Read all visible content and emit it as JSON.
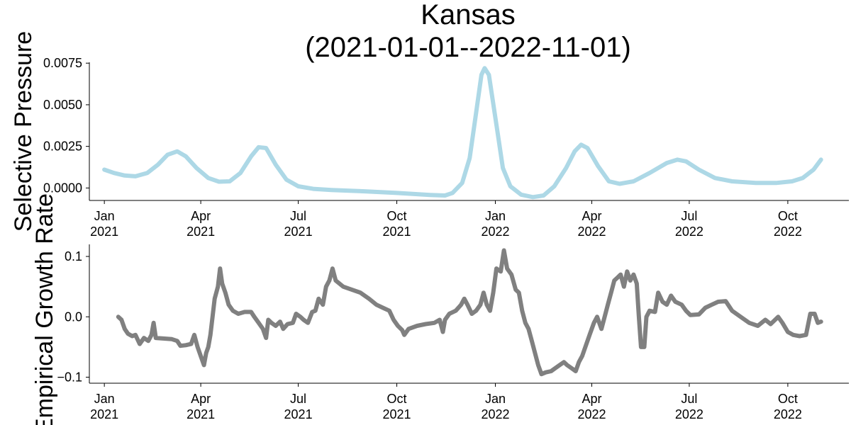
{
  "title_line1": "Kansas",
  "title_line2": "(2021-01-01--2022-11-01)",
  "chart_data": [
    {
      "type": "line",
      "name": "selective-pressure",
      "ylabel": "Selective Pressure",
      "color": "#add8e6",
      "xlim": [
        "2020-12-18",
        "2022-11-27"
      ],
      "ylim": [
        -0.00075,
        0.00755
      ],
      "yticks": [
        0,
        0.0025,
        0.005,
        0.0075
      ],
      "ytick_labels": [
        "0.0000",
        "0.0025",
        "0.0050",
        "0.0075"
      ],
      "xticks": [
        "2021-01-01",
        "2021-04-01",
        "2021-07-01",
        "2021-10-01",
        "2022-01-01",
        "2022-04-01",
        "2022-07-01",
        "2022-10-01"
      ],
      "xtick_labels": [
        [
          "Jan",
          "2021"
        ],
        [
          "Apr",
          "2021"
        ],
        [
          "Jul",
          "2021"
        ],
        [
          "Oct",
          "2021"
        ],
        [
          "Jan",
          "2022"
        ],
        [
          "Apr",
          "2022"
        ],
        [
          "Jul",
          "2022"
        ],
        [
          "Oct",
          "2022"
        ]
      ],
      "points": [
        [
          "2021-01-01",
          0.0011
        ],
        [
          "2021-01-10",
          0.0009
        ],
        [
          "2021-01-20",
          0.00075
        ],
        [
          "2021-01-30",
          0.0007
        ],
        [
          "2021-02-10",
          0.0009
        ],
        [
          "2021-02-20",
          0.0014
        ],
        [
          "2021-03-01",
          0.002
        ],
        [
          "2021-03-10",
          0.0022
        ],
        [
          "2021-03-18",
          0.0019
        ],
        [
          "2021-03-28",
          0.0012
        ],
        [
          "2021-04-08",
          0.0006
        ],
        [
          "2021-04-18",
          0.00038
        ],
        [
          "2021-04-28",
          0.0004
        ],
        [
          "2021-05-08",
          0.0009
        ],
        [
          "2021-05-18",
          0.0019
        ],
        [
          "2021-05-25",
          0.00245
        ],
        [
          "2021-06-01",
          0.0024
        ],
        [
          "2021-06-10",
          0.0014
        ],
        [
          "2021-06-20",
          0.0005
        ],
        [
          "2021-07-01",
          0.0001
        ],
        [
          "2021-07-15",
          -5e-05
        ],
        [
          "2021-08-01",
          -0.00012
        ],
        [
          "2021-09-01",
          -0.0002
        ],
        [
          "2021-10-01",
          -0.0003
        ],
        [
          "2021-11-01",
          -0.00042
        ],
        [
          "2021-11-15",
          -0.00045
        ],
        [
          "2021-11-22",
          -0.0003
        ],
        [
          "2021-12-01",
          0.0003
        ],
        [
          "2021-12-08",
          0.0018
        ],
        [
          "2021-12-14",
          0.0045
        ],
        [
          "2021-12-19",
          0.0068
        ],
        [
          "2021-12-22",
          0.0072
        ],
        [
          "2021-12-26",
          0.0068
        ],
        [
          "2022-01-02",
          0.0038
        ],
        [
          "2022-01-08",
          0.0012
        ],
        [
          "2022-01-15",
          0.0001
        ],
        [
          "2022-01-25",
          -0.0004
        ],
        [
          "2022-02-05",
          -0.00055
        ],
        [
          "2022-02-15",
          -0.00045
        ],
        [
          "2022-02-25",
          0.0001
        ],
        [
          "2022-03-08",
          0.0012
        ],
        [
          "2022-03-16",
          0.0022
        ],
        [
          "2022-03-22",
          0.0026
        ],
        [
          "2022-03-28",
          0.0024
        ],
        [
          "2022-04-07",
          0.0013
        ],
        [
          "2022-04-17",
          0.0004
        ],
        [
          "2022-04-27",
          0.00025
        ],
        [
          "2022-05-10",
          0.0004
        ],
        [
          "2022-05-25",
          0.0009
        ],
        [
          "2022-06-10",
          0.0015
        ],
        [
          "2022-06-20",
          0.0017
        ],
        [
          "2022-06-28",
          0.0016
        ],
        [
          "2022-07-10",
          0.0011
        ],
        [
          "2022-07-25",
          0.0006
        ],
        [
          "2022-08-10",
          0.0004
        ],
        [
          "2022-09-01",
          0.0003
        ],
        [
          "2022-09-20",
          0.0003
        ],
        [
          "2022-10-05",
          0.0004
        ],
        [
          "2022-10-15",
          0.0006
        ],
        [
          "2022-10-25",
          0.0011
        ],
        [
          "2022-11-01",
          0.0017
        ]
      ]
    },
    {
      "type": "line",
      "name": "empirical-growth-rate",
      "ylabel": "Empirical Growth Rate",
      "color": "#808080",
      "xlim": [
        "2020-12-18",
        "2022-11-27"
      ],
      "ylim": [
        -0.11,
        0.12
      ],
      "yticks": [
        -0.1,
        0,
        0.1
      ],
      "ytick_labels": [
        "−0.1",
        "0.0",
        "0.1"
      ],
      "xticks": [
        "2021-01-01",
        "2021-04-01",
        "2021-07-01",
        "2021-10-01",
        "2022-01-01",
        "2022-04-01",
        "2022-07-01",
        "2022-10-01"
      ],
      "xtick_labels": [
        [
          "Jan",
          "2021"
        ],
        [
          "Apr",
          "2021"
        ],
        [
          "Jul",
          "2021"
        ],
        [
          "Oct",
          "2021"
        ],
        [
          "Jan",
          "2022"
        ],
        [
          "Apr",
          "2022"
        ],
        [
          "Jul",
          "2022"
        ],
        [
          "Oct",
          "2022"
        ]
      ],
      "points": [
        [
          "2021-01-14",
          0.0
        ],
        [
          "2021-01-17",
          -0.005
        ],
        [
          "2021-01-20",
          -0.02
        ],
        [
          "2021-01-23",
          -0.028
        ],
        [
          "2021-01-27",
          -0.032
        ],
        [
          "2021-01-30",
          -0.03
        ],
        [
          "2021-02-03",
          -0.045
        ],
        [
          "2021-02-07",
          -0.035
        ],
        [
          "2021-02-11",
          -0.04
        ],
        [
          "2021-02-14",
          -0.03
        ],
        [
          "2021-02-16",
          -0.01
        ],
        [
          "2021-02-18",
          -0.035
        ],
        [
          "2021-02-25",
          -0.036
        ],
        [
          "2021-03-05",
          -0.037
        ],
        [
          "2021-03-10",
          -0.04
        ],
        [
          "2021-03-13",
          -0.048
        ],
        [
          "2021-03-18",
          -0.047
        ],
        [
          "2021-03-23",
          -0.045
        ],
        [
          "2021-03-26",
          -0.03
        ],
        [
          "2021-03-29",
          -0.05
        ],
        [
          "2021-04-01",
          -0.065
        ],
        [
          "2021-04-04",
          -0.08
        ],
        [
          "2021-04-06",
          -0.06
        ],
        [
          "2021-04-08",
          -0.05
        ],
        [
          "2021-04-10",
          -0.03
        ],
        [
          "2021-04-12",
          0.0
        ],
        [
          "2021-04-14",
          0.03
        ],
        [
          "2021-04-17",
          0.05
        ],
        [
          "2021-04-19",
          0.08
        ],
        [
          "2021-04-21",
          0.055
        ],
        [
          "2021-04-24",
          0.04
        ],
        [
          "2021-04-27",
          0.02
        ],
        [
          "2021-05-01",
          0.01
        ],
        [
          "2021-05-06",
          0.005
        ],
        [
          "2021-05-12",
          0.008
        ],
        [
          "2021-05-18",
          0.008
        ],
        [
          "2021-05-21",
          0.0
        ],
        [
          "2021-05-25",
          -0.01
        ],
        [
          "2021-05-29",
          -0.02
        ],
        [
          "2021-06-01",
          -0.035
        ],
        [
          "2021-06-03",
          -0.005
        ],
        [
          "2021-06-06",
          -0.01
        ],
        [
          "2021-06-10",
          -0.015
        ],
        [
          "2021-06-14",
          -0.008
        ],
        [
          "2021-06-17",
          -0.02
        ],
        [
          "2021-06-21",
          -0.012
        ],
        [
          "2021-06-26",
          -0.01
        ],
        [
          "2021-06-29",
          0.005
        ],
        [
          "2021-07-03",
          0.0
        ],
        [
          "2021-07-06",
          -0.005
        ],
        [
          "2021-07-10",
          -0.01
        ],
        [
          "2021-07-14",
          0.008
        ],
        [
          "2021-07-17",
          0.01
        ],
        [
          "2021-07-20",
          0.03
        ],
        [
          "2021-07-24",
          0.02
        ],
        [
          "2021-07-27",
          0.05
        ],
        [
          "2021-07-30",
          0.06
        ],
        [
          "2021-08-02",
          0.08
        ],
        [
          "2021-08-05",
          0.06
        ],
        [
          "2021-08-12",
          0.05
        ],
        [
          "2021-08-20",
          0.045
        ],
        [
          "2021-08-28",
          0.04
        ],
        [
          "2021-09-05",
          0.03
        ],
        [
          "2021-09-12",
          0.02
        ],
        [
          "2021-09-18",
          0.015
        ],
        [
          "2021-09-24",
          0.01
        ],
        [
          "2021-09-28",
          -0.005
        ],
        [
          "2021-10-02",
          -0.015
        ],
        [
          "2021-10-06",
          -0.022
        ],
        [
          "2021-10-08",
          -0.03
        ],
        [
          "2021-10-12",
          -0.02
        ],
        [
          "2021-10-20",
          -0.015
        ],
        [
          "2021-10-28",
          -0.012
        ],
        [
          "2021-11-05",
          -0.01
        ],
        [
          "2021-11-10",
          -0.005
        ],
        [
          "2021-11-13",
          -0.025
        ],
        [
          "2021-11-15",
          -0.005
        ],
        [
          "2021-11-19",
          0.005
        ],
        [
          "2021-11-25",
          0.01
        ],
        [
          "2021-11-30",
          0.02
        ],
        [
          "2021-12-03",
          0.03
        ],
        [
          "2021-12-06",
          0.02
        ],
        [
          "2021-12-10",
          0.005
        ],
        [
          "2021-12-14",
          0.01
        ],
        [
          "2021-12-18",
          0.02
        ],
        [
          "2021-12-21",
          0.04
        ],
        [
          "2021-12-24",
          0.02
        ],
        [
          "2021-12-27",
          0.01
        ],
        [
          "2021-12-30",
          0.04
        ],
        [
          "2022-01-02",
          0.08
        ],
        [
          "2022-01-06",
          0.075
        ],
        [
          "2022-01-09",
          0.11
        ],
        [
          "2022-01-12",
          0.08
        ],
        [
          "2022-01-16",
          0.07
        ],
        [
          "2022-01-20",
          0.045
        ],
        [
          "2022-01-23",
          0.04
        ],
        [
          "2022-01-26",
          0.01
        ],
        [
          "2022-01-29",
          -0.01
        ],
        [
          "2022-02-01",
          -0.02
        ],
        [
          "2022-02-04",
          -0.04
        ],
        [
          "2022-02-07",
          -0.06
        ],
        [
          "2022-02-10",
          -0.08
        ],
        [
          "2022-02-13",
          -0.095
        ],
        [
          "2022-02-17",
          -0.092
        ],
        [
          "2022-02-22",
          -0.09
        ],
        [
          "2022-02-26",
          -0.085
        ],
        [
          "2022-03-02",
          -0.08
        ],
        [
          "2022-03-06",
          -0.075
        ],
        [
          "2022-03-09",
          -0.08
        ],
        [
          "2022-03-13",
          -0.085
        ],
        [
          "2022-03-17",
          -0.09
        ],
        [
          "2022-03-20",
          -0.075
        ],
        [
          "2022-03-23",
          -0.065
        ],
        [
          "2022-03-27",
          -0.045
        ],
        [
          "2022-03-30",
          -0.03
        ],
        [
          "2022-04-03",
          -0.01
        ],
        [
          "2022-04-06",
          0.0
        ],
        [
          "2022-04-10",
          -0.02
        ],
        [
          "2022-04-13",
          0.0
        ],
        [
          "2022-04-16",
          0.02
        ],
        [
          "2022-04-19",
          0.04
        ],
        [
          "2022-04-22",
          0.06
        ],
        [
          "2022-04-25",
          0.065
        ],
        [
          "2022-04-28",
          0.07
        ],
        [
          "2022-05-01",
          0.05
        ],
        [
          "2022-05-04",
          0.075
        ],
        [
          "2022-05-07",
          0.06
        ],
        [
          "2022-05-10",
          0.07
        ],
        [
          "2022-05-13",
          0.055
        ],
        [
          "2022-05-15",
          0.0
        ],
        [
          "2022-05-17",
          -0.05
        ],
        [
          "2022-05-20",
          -0.05
        ],
        [
          "2022-05-22",
          0.0
        ],
        [
          "2022-05-25",
          0.01
        ],
        [
          "2022-05-30",
          0.008
        ],
        [
          "2022-06-02",
          0.04
        ],
        [
          "2022-06-06",
          0.025
        ],
        [
          "2022-06-10",
          0.02
        ],
        [
          "2022-06-14",
          0.035
        ],
        [
          "2022-06-18",
          0.025
        ],
        [
          "2022-06-24",
          0.02
        ],
        [
          "2022-06-28",
          0.01
        ],
        [
          "2022-07-02",
          0.003
        ],
        [
          "2022-07-10",
          0.004
        ],
        [
          "2022-07-16",
          0.015
        ],
        [
          "2022-07-22",
          0.02
        ],
        [
          "2022-07-28",
          0.025
        ],
        [
          "2022-08-04",
          0.026
        ],
        [
          "2022-08-10",
          0.01
        ],
        [
          "2022-08-18",
          0.0
        ],
        [
          "2022-08-26",
          -0.01
        ],
        [
          "2022-09-03",
          -0.015
        ],
        [
          "2022-09-10",
          -0.005
        ],
        [
          "2022-09-15",
          -0.012
        ],
        [
          "2022-09-22",
          0.0
        ],
        [
          "2022-09-26",
          -0.01
        ],
        [
          "2022-10-01",
          -0.025
        ],
        [
          "2022-10-06",
          -0.03
        ],
        [
          "2022-10-12",
          -0.032
        ],
        [
          "2022-10-18",
          -0.03
        ],
        [
          "2022-10-22",
          0.005
        ],
        [
          "2022-10-26",
          0.005
        ],
        [
          "2022-10-29",
          -0.01
        ],
        [
          "2022-11-01",
          -0.008
        ]
      ]
    }
  ]
}
